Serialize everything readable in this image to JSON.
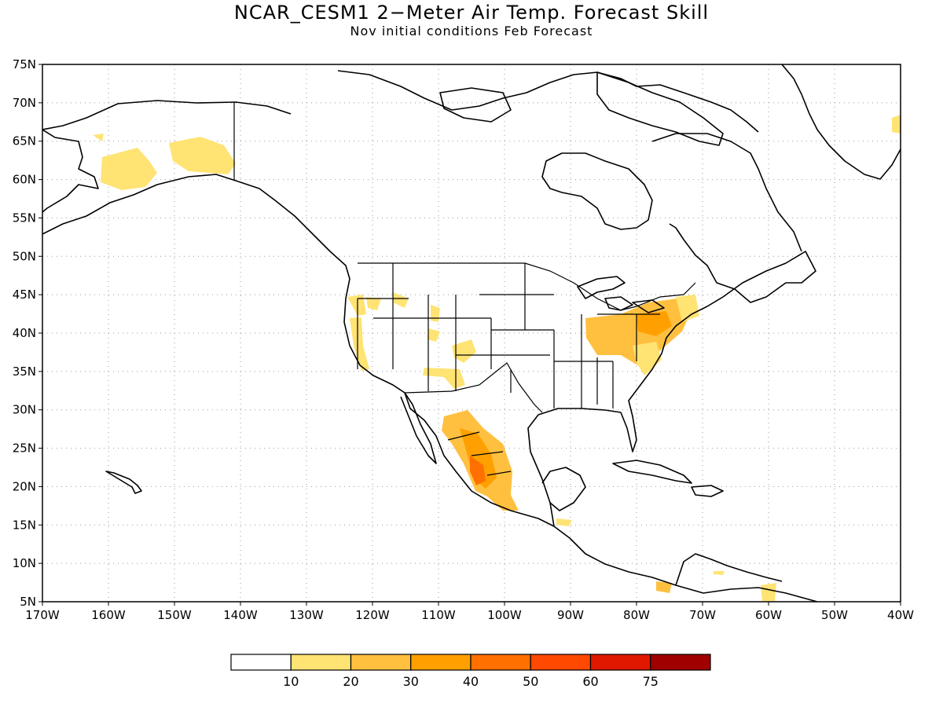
{
  "title": "NCAR_CESM1 2−Meter Air Temp. Forecast Skill",
  "subtitle": "Nov initial conditions  Feb Forecast",
  "map": {
    "lon_range": [
      -170,
      -40
    ],
    "lat_range": [
      5,
      75
    ],
    "grid": "dotted",
    "lon_ticks": [
      "170W",
      "160W",
      "150W",
      "140W",
      "130W",
      "120W",
      "110W",
      "100W",
      "90W",
      "80W",
      "70W",
      "60W",
      "50W",
      "40W"
    ],
    "lat_ticks": [
      "5N",
      "10N",
      "15N",
      "20N",
      "25N",
      "30N",
      "35N",
      "40N",
      "45N",
      "50N",
      "55N",
      "60N",
      "65N",
      "70N",
      "75N"
    ]
  },
  "colorbar": {
    "labels": [
      "10",
      "20",
      "30",
      "40",
      "50",
      "60",
      "75"
    ],
    "colors": [
      "#ffffff",
      "#ffe373",
      "#ffc040",
      "#ffa000",
      "#ff7000",
      "#ff4800",
      "#e01800",
      "#a00000"
    ]
  }
}
